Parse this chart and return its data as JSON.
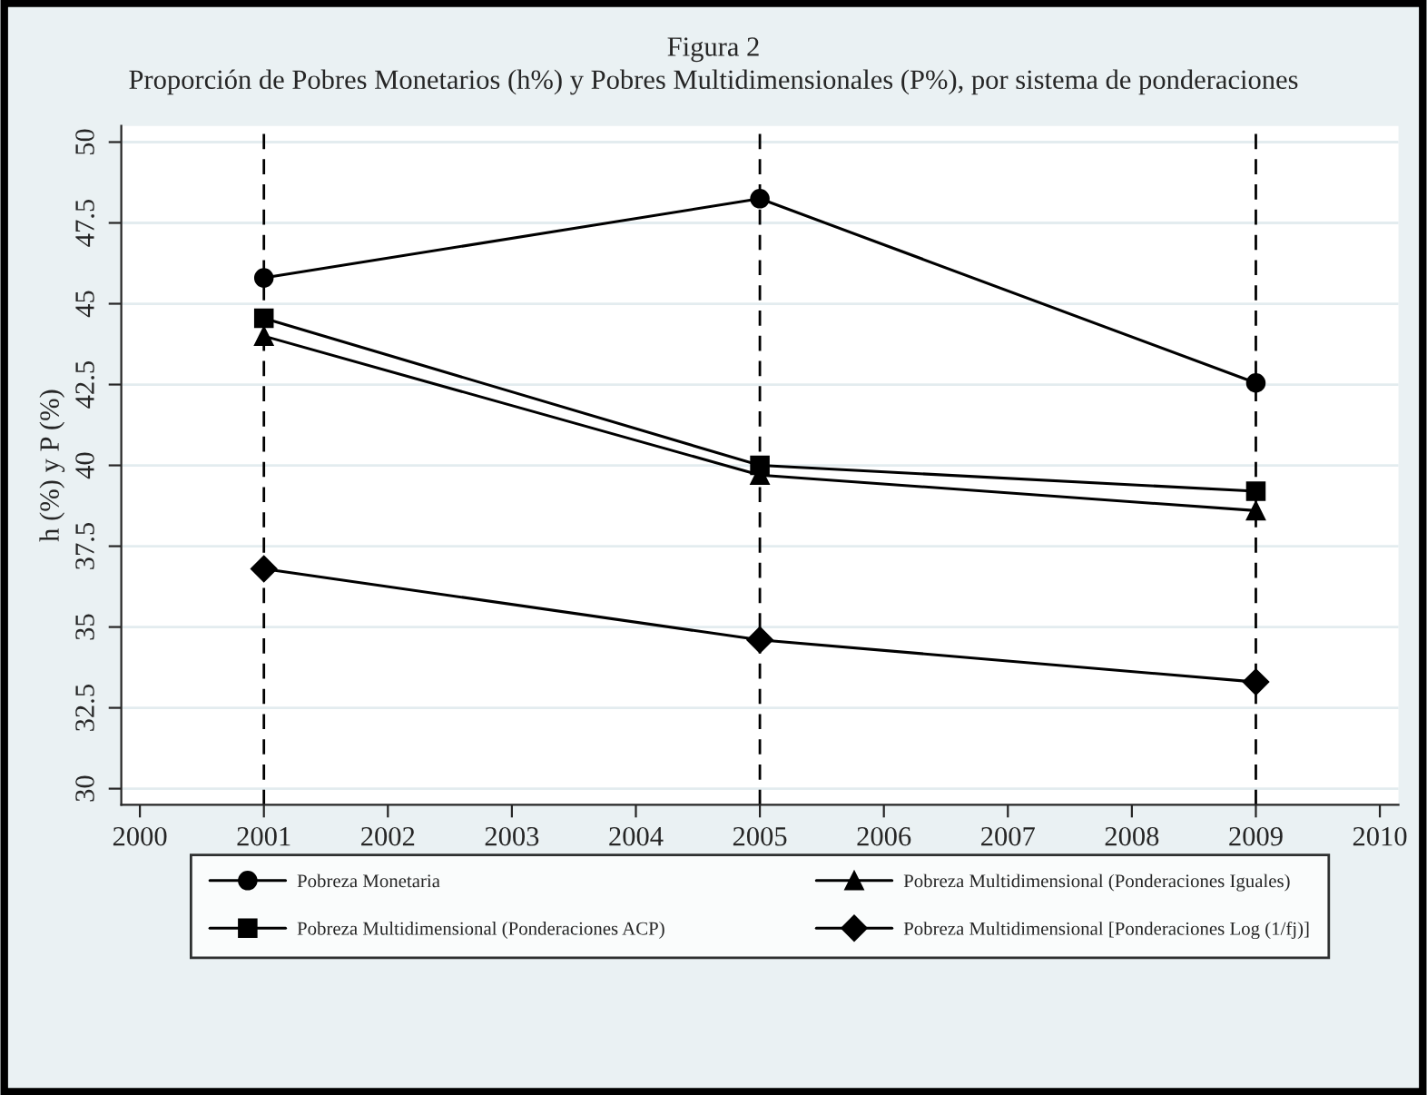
{
  "chart_data": {
    "type": "line",
    "title": "Figura 2",
    "subtitle": "Proporción de Pobres Monetarios (h%) y Pobres Multidimensionales (P%), por sistema de ponderaciones",
    "ylabel": "h (%) y P (%)",
    "x": [
      2001,
      2005,
      2009
    ],
    "series": [
      {
        "name": "Pobreza Monetaria",
        "color": "#000000",
        "marker": "circle",
        "values": [
          45.8,
          48.25,
          42.55
        ]
      },
      {
        "name": "Pobreza Multidimensional (Ponderaciones Iguales)",
        "color": "#000000",
        "marker": "triangle",
        "values": [
          44.0,
          39.7,
          38.6
        ]
      },
      {
        "name": "Pobreza Multidimensional (Ponderaciones ACP)",
        "color": "#000000",
        "marker": "square",
        "values": [
          44.55,
          40.0,
          39.2
        ]
      },
      {
        "name": "Pobreza Multidimensional [Ponderaciones Log (1/fj)]",
        "color": "#000000",
        "marker": "diamond",
        "values": [
          36.8,
          34.6,
          33.3
        ]
      }
    ],
    "xlim": [
      1999.85,
      2010.15
    ],
    "xticks": [
      2000,
      2001,
      2002,
      2003,
      2004,
      2005,
      2006,
      2007,
      2008,
      2009,
      2010
    ],
    "ylim": [
      29.5,
      50.5
    ],
    "yticks": [
      30,
      32.5,
      35,
      37.5,
      40,
      42.5,
      45,
      47.5,
      50
    ],
    "ref_lines": [
      {
        "axis": "x",
        "value": 2001,
        "color": "#000000",
        "line_style": "dashed"
      },
      {
        "axis": "x",
        "value": 2005,
        "color": "#000000",
        "line_style": "dashed"
      },
      {
        "axis": "x",
        "value": 2009,
        "color": "#000000",
        "line_style": "dashed"
      }
    ],
    "grid": "y",
    "legend": "bottom",
    "line_style": "solid"
  }
}
